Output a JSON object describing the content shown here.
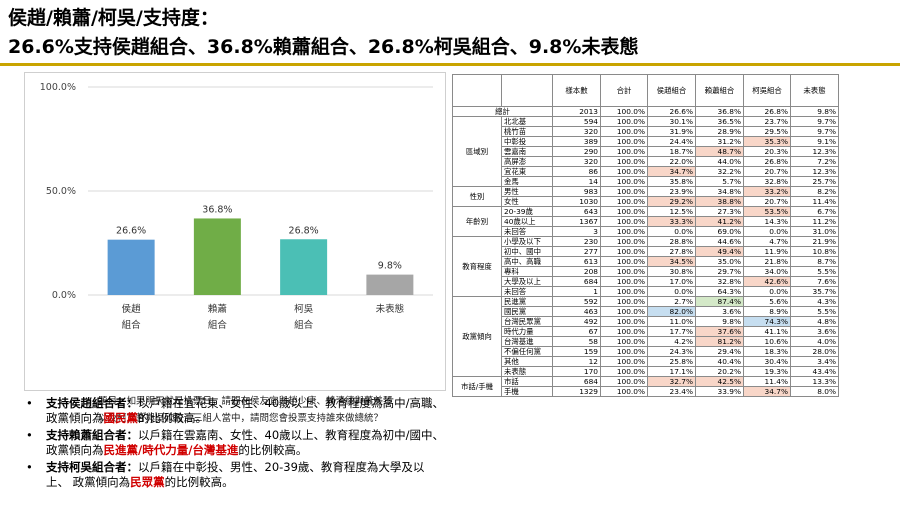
{
  "header": {
    "line1": "侯趙/賴蕭/柯吳/支持度：",
    "line2": "26.6%支持侯趙組合、36.8%賴蕭組合、26.8%柯吳組合、9.8%未表態"
  },
  "chart_data": {
    "type": "bar",
    "categories": [
      [
        "侯趙",
        "組合"
      ],
      [
        "賴蕭",
        "組合"
      ],
      [
        "柯吳",
        "組合"
      ],
      [
        "未表態"
      ]
    ],
    "values": [
      26.6,
      36.8,
      26.8,
      9.8
    ],
    "value_labels": [
      "26.6%",
      "36.8%",
      "26.8%",
      "9.8%"
    ],
    "colors": [
      "#5b9bd5",
      "#70ad47",
      "#4bbfb5",
      "#a6a6a6"
    ],
    "ylim": [
      0,
      100
    ],
    "yticks": [
      0,
      50,
      100
    ],
    "ytick_labels": [
      "0.0%",
      "50.0%",
      "100.0%"
    ],
    "grid": true,
    "title": "",
    "xlabel": "",
    "ylabel": "",
    "note": "題目：如果明天就是投票日，請問在侯友宜與趙少康、賴清德與蕭美琴以及柯文哲與吳欣盈這三組人當中，請問您會投票支持誰來做總統？"
  },
  "bullets": [
    {
      "lead": "支持侯趙組合者：",
      "text1": "以戶籍在宜花東、女性、40歲以上、教育程度為高中/高職、 政黨傾向為",
      "red": "國民黨",
      "text2": "的比例較高。"
    },
    {
      "lead": "支持賴蕭組合者：",
      "text1": "以戶籍在雲嘉南、女性、40歲以上、教育程度為初中/國中、 政黨傾向為",
      "red": "民進黨/時代力量/台灣基進",
      "text2": "的比例較高。"
    },
    {
      "lead": "支持柯吳組合者：",
      "text1": "以戶籍在中彰投、男性、20-39歲、教育程度為大學及以上、 政黨傾向為",
      "red": "民眾黨",
      "text2": "的比例較高。"
    }
  ],
  "table": {
    "headers": [
      "樣本數",
      "合計",
      "侯趙組合",
      "賴蕭組合",
      "柯吳組合",
      "未表態"
    ],
    "total": {
      "label": "總計",
      "values": [
        "2013",
        "100.0%",
        "26.6%",
        "36.8%",
        "26.8%",
        "9.8%"
      ]
    },
    "groups": [
      {
        "name": "區域別",
        "rows": [
          {
            "label": "北北基",
            "values": [
              "594",
              "100.0%",
              "30.1%",
              "36.5%",
              "23.7%",
              "9.7%"
            ]
          },
          {
            "label": "桃竹苗",
            "values": [
              "320",
              "100.0%",
              "31.9%",
              "28.9%",
              "29.5%",
              "9.7%"
            ]
          },
          {
            "label": "中彰投",
            "values": [
              "389",
              "100.0%",
              "24.4%",
              "31.2%",
              "35.3%",
              "9.1%"
            ],
            "hl": [
              4
            ]
          },
          {
            "label": "雲嘉南",
            "values": [
              "290",
              "100.0%",
              "18.7%",
              "48.7%",
              "20.3%",
              "12.3%"
            ],
            "hl": [
              3
            ]
          },
          {
            "label": "高屏澎",
            "values": [
              "320",
              "100.0%",
              "22.0%",
              "44.0%",
              "26.8%",
              "7.2%"
            ]
          },
          {
            "label": "宜花東",
            "values": [
              "86",
              "100.0%",
              "34.7%",
              "32.2%",
              "20.7%",
              "12.3%"
            ],
            "hl": [
              2
            ]
          },
          {
            "label": "金馬",
            "values": [
              "14",
              "100.0%",
              "35.8%",
              "5.7%",
              "32.8%",
              "25.7%"
            ]
          }
        ]
      },
      {
        "name": "性別",
        "rows": [
          {
            "label": "男性",
            "values": [
              "983",
              "100.0%",
              "23.9%",
              "34.8%",
              "33.2%",
              "8.2%"
            ],
            "hl": [
              4
            ]
          },
          {
            "label": "女性",
            "values": [
              "1030",
              "100.0%",
              "29.2%",
              "38.8%",
              "20.7%",
              "11.4%"
            ],
            "hl": [
              2,
              3
            ]
          }
        ]
      },
      {
        "name": "年齡別",
        "rows": [
          {
            "label": "20-39歲",
            "values": [
              "643",
              "100.0%",
              "12.5%",
              "27.3%",
              "53.5%",
              "6.7%"
            ],
            "hl": [
              4
            ]
          },
          {
            "label": "40歲以上",
            "values": [
              "1367",
              "100.0%",
              "33.3%",
              "41.2%",
              "14.3%",
              "11.2%"
            ],
            "hl": [
              2,
              3
            ]
          },
          {
            "label": "未回答",
            "values": [
              "3",
              "100.0%",
              "0.0%",
              "69.0%",
              "0.0%",
              "31.0%"
            ]
          }
        ]
      },
      {
        "name": "教育程度",
        "rows": [
          {
            "label": "小學及以下",
            "values": [
              "230",
              "100.0%",
              "28.8%",
              "44.6%",
              "4.7%",
              "21.9%"
            ]
          },
          {
            "label": "初中、國中",
            "values": [
              "277",
              "100.0%",
              "27.8%",
              "49.4%",
              "11.9%",
              "10.8%"
            ],
            "hl": [
              3
            ]
          },
          {
            "label": "高中、高職",
            "values": [
              "613",
              "100.0%",
              "34.5%",
              "35.0%",
              "21.8%",
              "8.7%"
            ],
            "hl": [
              2
            ]
          },
          {
            "label": "專科",
            "values": [
              "208",
              "100.0%",
              "30.8%",
              "29.7%",
              "34.0%",
              "5.5%"
            ]
          },
          {
            "label": "大學及以上",
            "values": [
              "684",
              "100.0%",
              "17.0%",
              "32.8%",
              "42.6%",
              "7.6%"
            ],
            "hl": [
              4
            ]
          },
          {
            "label": "未回答",
            "values": [
              "1",
              "100.0%",
              "0.0%",
              "64.3%",
              "0.0%",
              "35.7%"
            ]
          }
        ]
      },
      {
        "name": "政黨傾向",
        "rows": [
          {
            "label": "民進黨",
            "values": [
              "592",
              "100.0%",
              "2.7%",
              "87.4%",
              "5.6%",
              "4.3%"
            ],
            "hl": [
              3
            ],
            "color": "green"
          },
          {
            "label": "國民黨",
            "values": [
              "463",
              "100.0%",
              "82.0%",
              "3.6%",
              "8.9%",
              "5.5%"
            ],
            "hl": [
              2
            ],
            "color": "blue"
          },
          {
            "label": "台灣民眾黨",
            "values": [
              "492",
              "100.0%",
              "11.0%",
              "9.8%",
              "74.3%",
              "4.8%"
            ],
            "hl": [
              4
            ],
            "color": "blue"
          },
          {
            "label": "時代力量",
            "values": [
              "67",
              "100.0%",
              "17.7%",
              "37.6%",
              "41.1%",
              "3.6%"
            ],
            "hl": [
              3
            ]
          },
          {
            "label": "台灣基進",
            "values": [
              "58",
              "100.0%",
              "4.2%",
              "81.2%",
              "10.6%",
              "4.0%"
            ],
            "hl": [
              3
            ]
          },
          {
            "label": "不偏任何黨",
            "values": [
              "159",
              "100.0%",
              "24.3%",
              "29.4%",
              "18.3%",
              "28.0%"
            ]
          },
          {
            "label": "其他",
            "values": [
              "12",
              "100.0%",
              "25.8%",
              "40.4%",
              "30.4%",
              "3.4%"
            ]
          },
          {
            "label": "未表態",
            "values": [
              "170",
              "100.0%",
              "17.1%",
              "20.2%",
              "19.3%",
              "43.4%"
            ]
          }
        ]
      },
      {
        "name": "市話/手機",
        "rows": [
          {
            "label": "市話",
            "values": [
              "684",
              "100.0%",
              "32.7%",
              "42.5%",
              "11.4%",
              "13.3%"
            ],
            "hl": [
              2,
              3
            ]
          },
          {
            "label": "手機",
            "values": [
              "1329",
              "100.0%",
              "23.4%",
              "33.9%",
              "34.7%",
              "8.0%"
            ],
            "hl": [
              4
            ]
          }
        ]
      }
    ]
  }
}
